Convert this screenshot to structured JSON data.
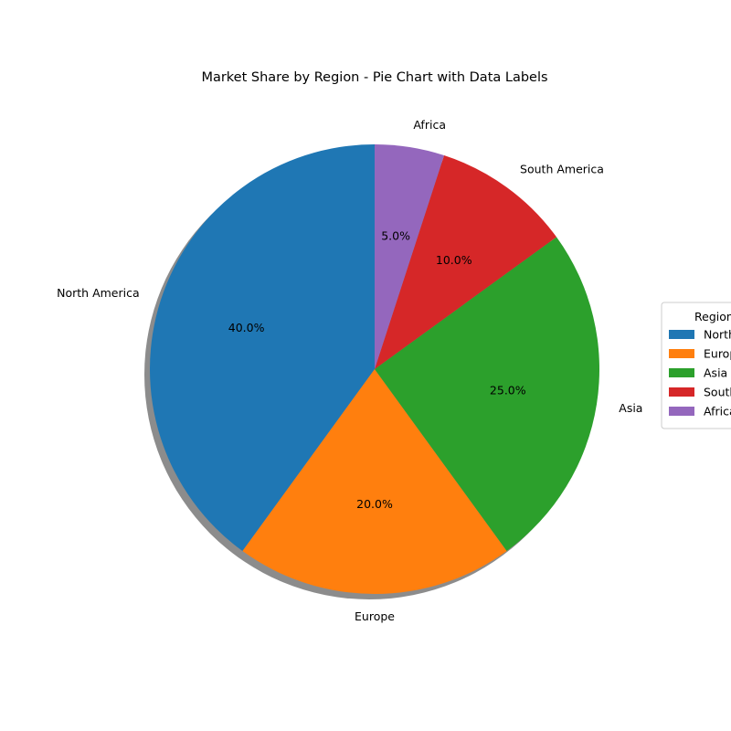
{
  "chart_data": {
    "type": "pie",
    "title": "Market Share by Region - Pie Chart with Data Labels",
    "categories": [
      "North America",
      "Europe",
      "Asia",
      "South America",
      "Africa"
    ],
    "values": [
      40,
      20,
      25,
      10,
      5
    ],
    "percent_labels": [
      "40.0%",
      "20.0%",
      "25.0%",
      "10.0%",
      "5.0%"
    ],
    "colors": [
      "#1f77b4",
      "#ff7f0e",
      "#2ca02c",
      "#d62728",
      "#9467bd"
    ],
    "start_angle_deg": 90,
    "direction": "counterclockwise",
    "shadow": true,
    "legend": {
      "title": "Regions",
      "placement": "center-right",
      "entries": [
        "North America",
        "Europe",
        "Asia",
        "South America",
        "Africa"
      ]
    }
  }
}
